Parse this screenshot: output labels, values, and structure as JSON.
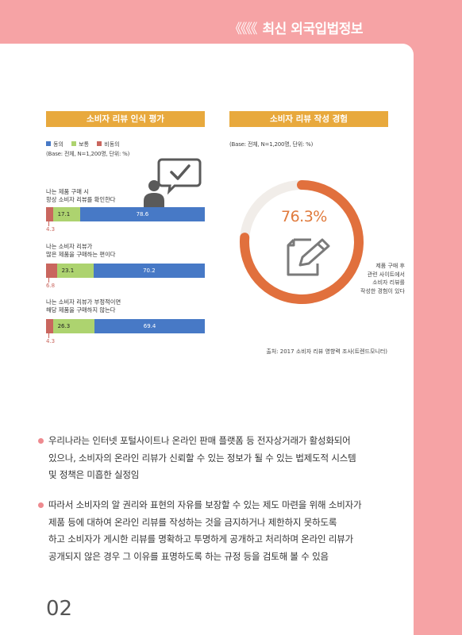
{
  "header": {
    "chevrons": "《《《《",
    "title": "최신 외국입법정보"
  },
  "left_chart": {
    "heading": "소비자 리뷰 인식 평가",
    "legend": [
      "동의",
      "보통",
      "비동의"
    ],
    "base": "(Base: 전체, N=1,200명, 단위: %)",
    "colors": {
      "agree": "#4779c6",
      "neutral": "#add36f",
      "disagree": "#c9665e"
    }
  },
  "right_chart": {
    "heading": "소비자 리뷰 작성 경험",
    "base": "(Base: 전체, N=1,200명, 단위: %)",
    "value_label": "76.3%",
    "note": [
      "제품 구매 후",
      "관련 사이트에서",
      "소비자 리뷰를",
      "작성한 경험이 있다"
    ],
    "source": "출처: 2017 소비자 리뷰 영향력 조사(트렌드모니터)"
  },
  "chart_data": [
    {
      "type": "bar",
      "title": "소비자 리뷰 인식 평가",
      "categories": [
        "나는 제품 구매 시 항상 소비자 리뷰를 확인한다",
        "나는 소비자 리뷰가 많은 제품을 구매하는 편이다",
        "나는 소비자 리뷰가 부정적이면 해당 제품을 구매하지 않는다"
      ],
      "series": [
        {
          "name": "비동의",
          "values": [
            4.3,
            6.8,
            4.3
          ]
        },
        {
          "name": "보통",
          "values": [
            17.1,
            23.1,
            26.3
          ]
        },
        {
          "name": "동의",
          "values": [
            78.6,
            70.2,
            69.4
          ]
        }
      ],
      "stacked": true
    },
    {
      "type": "pie",
      "title": "소비자 리뷰 작성 경험",
      "values": [
        76.3
      ]
    }
  ],
  "questions": [
    {
      "lines": [
        "나는 제품 구매 시",
        "항상 소비자 리뷰를 확인한다"
      ],
      "disagree": "4.3",
      "neutral": "17.1",
      "agree": "78.6"
    },
    {
      "lines": [
        "나는 소비자 리뷰가",
        "많은 제품을 구매하는 편이다"
      ],
      "disagree": "6.8",
      "neutral": "23.1",
      "agree": "70.2"
    },
    {
      "lines": [
        "나는 소비자 리뷰가 부정적이면",
        "해당 제품을 구매하지 않는다"
      ],
      "disagree": "4.3",
      "neutral": "26.3",
      "agree": "69.4"
    }
  ],
  "paragraphs": [
    [
      "우리나라는 인터넷 포털사이트나 온라인 판매 플랫폼 등 전자상거래가 활성화되어",
      "있으나, 소비자의 온라인 리뷰가 신뢰할 수 있는 정보가 될 수 있는 법제도적 시스템",
      "및 정책은 미흡한 실정임"
    ],
    [
      "따라서 소비자의 알 권리와 표현의 자유를 보장할 수 있는 제도 마련을 위해 소비자가",
      "제품 등에 대하여 온라인 리뷰를 작성하는 것을 금지하거나 제한하지 못하도록",
      "하고 소비자가 게시한 리뷰를 명확하고 투명하게 공개하고 처리하며 온라인 리뷰가",
      "공개되지 않은 경우 그 이유를 표명하도록 하는 규정 등을 검토해 볼 수 있음"
    ]
  ],
  "page_number": "02"
}
